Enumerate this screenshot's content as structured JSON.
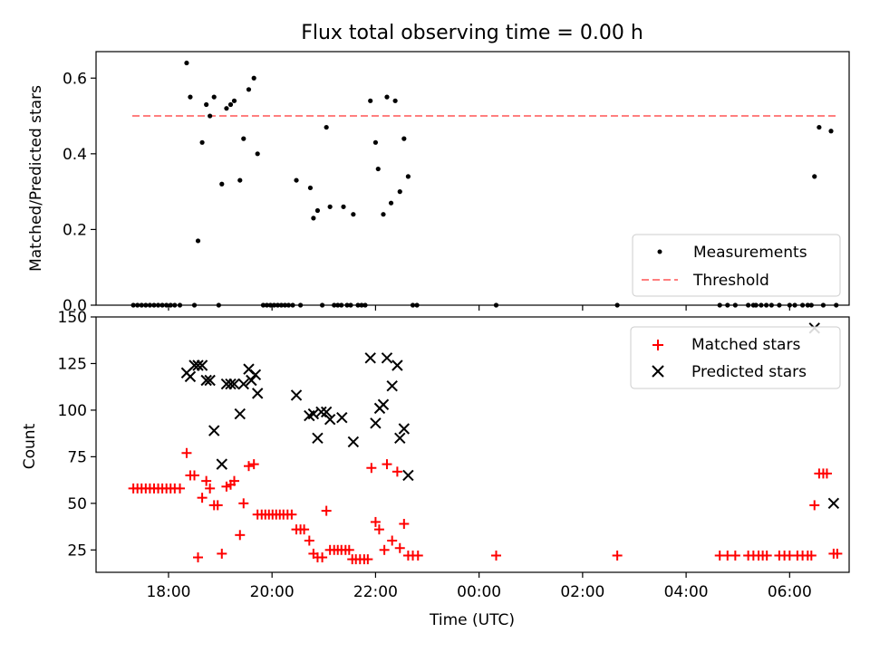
{
  "title": "Flux total observing time = 0.00 h",
  "colors": {
    "measurement": "#000000",
    "threshold": "#ff7f7f",
    "matched": "#ff0000",
    "predicted": "#000000"
  },
  "chart_data": [
    {
      "type": "scatter",
      "id": "ratio",
      "title": "Flux total observing time = 0.00 h",
      "ylabel": "Matched/Predicted stars",
      "xlim": [
        16.6,
        31.15
      ],
      "ylim": [
        0,
        0.67
      ],
      "ytick_values": [
        0.0,
        0.2,
        0.4,
        0.6
      ],
      "ytick_labels": [
        "0.0",
        "0.2",
        "0.4",
        "0.6"
      ],
      "xtick_values": [
        18,
        20,
        22,
        24,
        26,
        28,
        30
      ],
      "legend_position": "lower-right",
      "legend": [
        "Measurements",
        "Threshold"
      ],
      "threshold": {
        "name": "Threshold",
        "value": 0.5,
        "x_range": [
          17.3,
          30.95
        ]
      },
      "series": [
        {
          "name": "Measurements",
          "points": [
            [
              17.32,
              0
            ],
            [
              17.4,
              0
            ],
            [
              17.48,
              0
            ],
            [
              17.56,
              0
            ],
            [
              17.64,
              0
            ],
            [
              17.72,
              0
            ],
            [
              17.8,
              0
            ],
            [
              17.88,
              0
            ],
            [
              17.96,
              0
            ],
            [
              18.04,
              0
            ],
            [
              18.12,
              0
            ],
            [
              18.22,
              0
            ],
            [
              18.35,
              0.64
            ],
            [
              18.42,
              0.55
            ],
            [
              18.5,
              0
            ],
            [
              18.57,
              0.17
            ],
            [
              18.65,
              0.43
            ],
            [
              18.73,
              0.53
            ],
            [
              18.8,
              0.5
            ],
            [
              18.88,
              0.55
            ],
            [
              18.97,
              0
            ],
            [
              19.03,
              0.32
            ],
            [
              19.12,
              0.52
            ],
            [
              19.2,
              0.53
            ],
            [
              19.27,
              0.54
            ],
            [
              19.38,
              0.33
            ],
            [
              19.45,
              0.44
            ],
            [
              19.55,
              0.57
            ],
            [
              19.65,
              0.6
            ],
            [
              19.72,
              0.4
            ],
            [
              19.83,
              0
            ],
            [
              19.9,
              0
            ],
            [
              19.97,
              0
            ],
            [
              20.04,
              0
            ],
            [
              20.11,
              0
            ],
            [
              20.18,
              0
            ],
            [
              20.25,
              0
            ],
            [
              20.32,
              0
            ],
            [
              20.4,
              0
            ],
            [
              20.47,
              0.33
            ],
            [
              20.55,
              0
            ],
            [
              20.74,
              0.31
            ],
            [
              20.8,
              0.23
            ],
            [
              20.88,
              0.25
            ],
            [
              20.97,
              0
            ],
            [
              21.05,
              0.47
            ],
            [
              21.12,
              0.26
            ],
            [
              21.2,
              0
            ],
            [
              21.27,
              0
            ],
            [
              21.34,
              0
            ],
            [
              21.38,
              0.26
            ],
            [
              21.45,
              0
            ],
            [
              21.52,
              0
            ],
            [
              21.57,
              0.24
            ],
            [
              21.66,
              0
            ],
            [
              21.73,
              0
            ],
            [
              21.8,
              0
            ],
            [
              21.9,
              0.54
            ],
            [
              22.0,
              0.43
            ],
            [
              22.05,
              0.36
            ],
            [
              22.15,
              0.24
            ],
            [
              22.22,
              0.55
            ],
            [
              22.3,
              0.27
            ],
            [
              22.38,
              0.54
            ],
            [
              22.47,
              0.3
            ],
            [
              22.55,
              0.44
            ],
            [
              22.63,
              0.34
            ],
            [
              22.72,
              0
            ],
            [
              22.8,
              0
            ],
            [
              24.33,
              0
            ],
            [
              26.67,
              0
            ],
            [
              28.65,
              0
            ],
            [
              28.8,
              0
            ],
            [
              28.95,
              0
            ],
            [
              29.2,
              0
            ],
            [
              29.3,
              0
            ],
            [
              29.35,
              0
            ],
            [
              29.45,
              0
            ],
            [
              29.55,
              0
            ],
            [
              29.65,
              0
            ],
            [
              29.8,
              0
            ],
            [
              30.0,
              0
            ],
            [
              30.1,
              0
            ],
            [
              30.25,
              0
            ],
            [
              30.35,
              0
            ],
            [
              30.42,
              0
            ],
            [
              30.48,
              0.34
            ],
            [
              30.57,
              0.47
            ],
            [
              30.65,
              0
            ],
            [
              30.8,
              0.46
            ],
            [
              30.9,
              0
            ]
          ]
        }
      ]
    },
    {
      "type": "scatter",
      "id": "counts",
      "xlabel": "Time (UTC)",
      "ylabel": "Count",
      "xlim": [
        16.6,
        31.15
      ],
      "ylim": [
        13,
        150
      ],
      "ytick_values": [
        25,
        50,
        75,
        100,
        125,
        150
      ],
      "ytick_labels": [
        "25",
        "50",
        "75",
        "100",
        "125",
        "150"
      ],
      "xtick_values": [
        18,
        20,
        22,
        24,
        26,
        28,
        30
      ],
      "xtick_labels": [
        "18:00",
        "20:00",
        "22:00",
        "00:00",
        "02:00",
        "04:00",
        "06:00"
      ],
      "legend_position": "upper-right",
      "legend": [
        "Matched stars",
        "Predicted stars"
      ],
      "series": [
        {
          "name": "Matched stars",
          "marker": "plus",
          "points": [
            [
              17.32,
              58
            ],
            [
              17.4,
              58
            ],
            [
              17.48,
              58
            ],
            [
              17.56,
              58
            ],
            [
              17.64,
              58
            ],
            [
              17.72,
              58
            ],
            [
              17.8,
              58
            ],
            [
              17.88,
              58
            ],
            [
              17.96,
              58
            ],
            [
              18.04,
              58
            ],
            [
              18.12,
              58
            ],
            [
              18.22,
              58
            ],
            [
              18.35,
              77
            ],
            [
              18.42,
              65
            ],
            [
              18.5,
              65
            ],
            [
              18.57,
              21
            ],
            [
              18.65,
              53
            ],
            [
              18.73,
              62
            ],
            [
              18.8,
              58
            ],
            [
              18.88,
              49
            ],
            [
              18.95,
              49
            ],
            [
              19.03,
              23
            ],
            [
              19.12,
              59
            ],
            [
              19.2,
              60
            ],
            [
              19.27,
              62
            ],
            [
              19.38,
              33
            ],
            [
              19.45,
              50
            ],
            [
              19.55,
              70
            ],
            [
              19.65,
              71
            ],
            [
              19.72,
              44
            ],
            [
              19.8,
              44
            ],
            [
              19.87,
              44
            ],
            [
              19.94,
              44
            ],
            [
              20.01,
              44
            ],
            [
              20.08,
              44
            ],
            [
              20.15,
              44
            ],
            [
              20.22,
              44
            ],
            [
              20.3,
              44
            ],
            [
              20.38,
              44
            ],
            [
              20.47,
              36
            ],
            [
              20.55,
              36
            ],
            [
              20.62,
              36
            ],
            [
              20.72,
              30
            ],
            [
              20.8,
              23
            ],
            [
              20.88,
              21
            ],
            [
              20.97,
              21
            ],
            [
              21.05,
              46
            ],
            [
              21.12,
              25
            ],
            [
              21.2,
              25
            ],
            [
              21.27,
              25
            ],
            [
              21.34,
              25
            ],
            [
              21.42,
              25
            ],
            [
              21.49,
              25
            ],
            [
              21.55,
              20
            ],
            [
              21.62,
              20
            ],
            [
              21.7,
              20
            ],
            [
              21.78,
              20
            ],
            [
              21.85,
              20
            ],
            [
              21.92,
              69
            ],
            [
              22.0,
              40
            ],
            [
              22.07,
              36
            ],
            [
              22.17,
              25
            ],
            [
              22.22,
              71
            ],
            [
              22.32,
              30
            ],
            [
              22.42,
              67
            ],
            [
              22.47,
              26
            ],
            [
              22.55,
              39
            ],
            [
              22.63,
              22
            ],
            [
              22.72,
              22
            ],
            [
              22.82,
              22
            ],
            [
              24.33,
              22
            ],
            [
              26.67,
              22
            ],
            [
              28.65,
              22
            ],
            [
              28.8,
              22
            ],
            [
              28.95,
              22
            ],
            [
              29.2,
              22
            ],
            [
              29.3,
              22
            ],
            [
              29.4,
              22
            ],
            [
              29.48,
              22
            ],
            [
              29.56,
              22
            ],
            [
              29.8,
              22
            ],
            [
              29.9,
              22
            ],
            [
              30.0,
              22
            ],
            [
              30.15,
              22
            ],
            [
              30.25,
              22
            ],
            [
              30.35,
              22
            ],
            [
              30.42,
              22
            ],
            [
              30.48,
              49
            ],
            [
              30.57,
              66
            ],
            [
              30.65,
              66
            ],
            [
              30.72,
              66
            ],
            [
              30.85,
              23
            ],
            [
              30.92,
              23
            ]
          ]
        },
        {
          "name": "Predicted stars",
          "marker": "x",
          "points": [
            [
              18.35,
              120
            ],
            [
              18.42,
              118
            ],
            [
              18.5,
              124
            ],
            [
              18.57,
              124
            ],
            [
              18.65,
              124
            ],
            [
              18.73,
              116
            ],
            [
              18.8,
              116
            ],
            [
              18.88,
              89
            ],
            [
              19.03,
              71
            ],
            [
              19.12,
              114
            ],
            [
              19.2,
              114
            ],
            [
              19.27,
              114
            ],
            [
              19.38,
              98
            ],
            [
              19.45,
              114
            ],
            [
              19.55,
              122
            ],
            [
              19.6,
              116
            ],
            [
              19.68,
              119
            ],
            [
              19.72,
              109
            ],
            [
              20.47,
              108
            ],
            [
              20.72,
              97
            ],
            [
              20.8,
              98
            ],
            [
              20.88,
              85
            ],
            [
              20.95,
              99
            ],
            [
              21.05,
              99
            ],
            [
              21.12,
              95
            ],
            [
              21.35,
              96
            ],
            [
              21.57,
              83
            ],
            [
              21.9,
              128
            ],
            [
              22.0,
              93
            ],
            [
              22.08,
              101
            ],
            [
              22.15,
              103
            ],
            [
              22.22,
              128
            ],
            [
              22.32,
              113
            ],
            [
              22.42,
              124
            ],
            [
              22.47,
              85
            ],
            [
              22.55,
              90
            ],
            [
              22.63,
              65
            ],
            [
              30.48,
              144
            ],
            [
              30.85,
              50
            ]
          ]
        }
      ]
    }
  ]
}
